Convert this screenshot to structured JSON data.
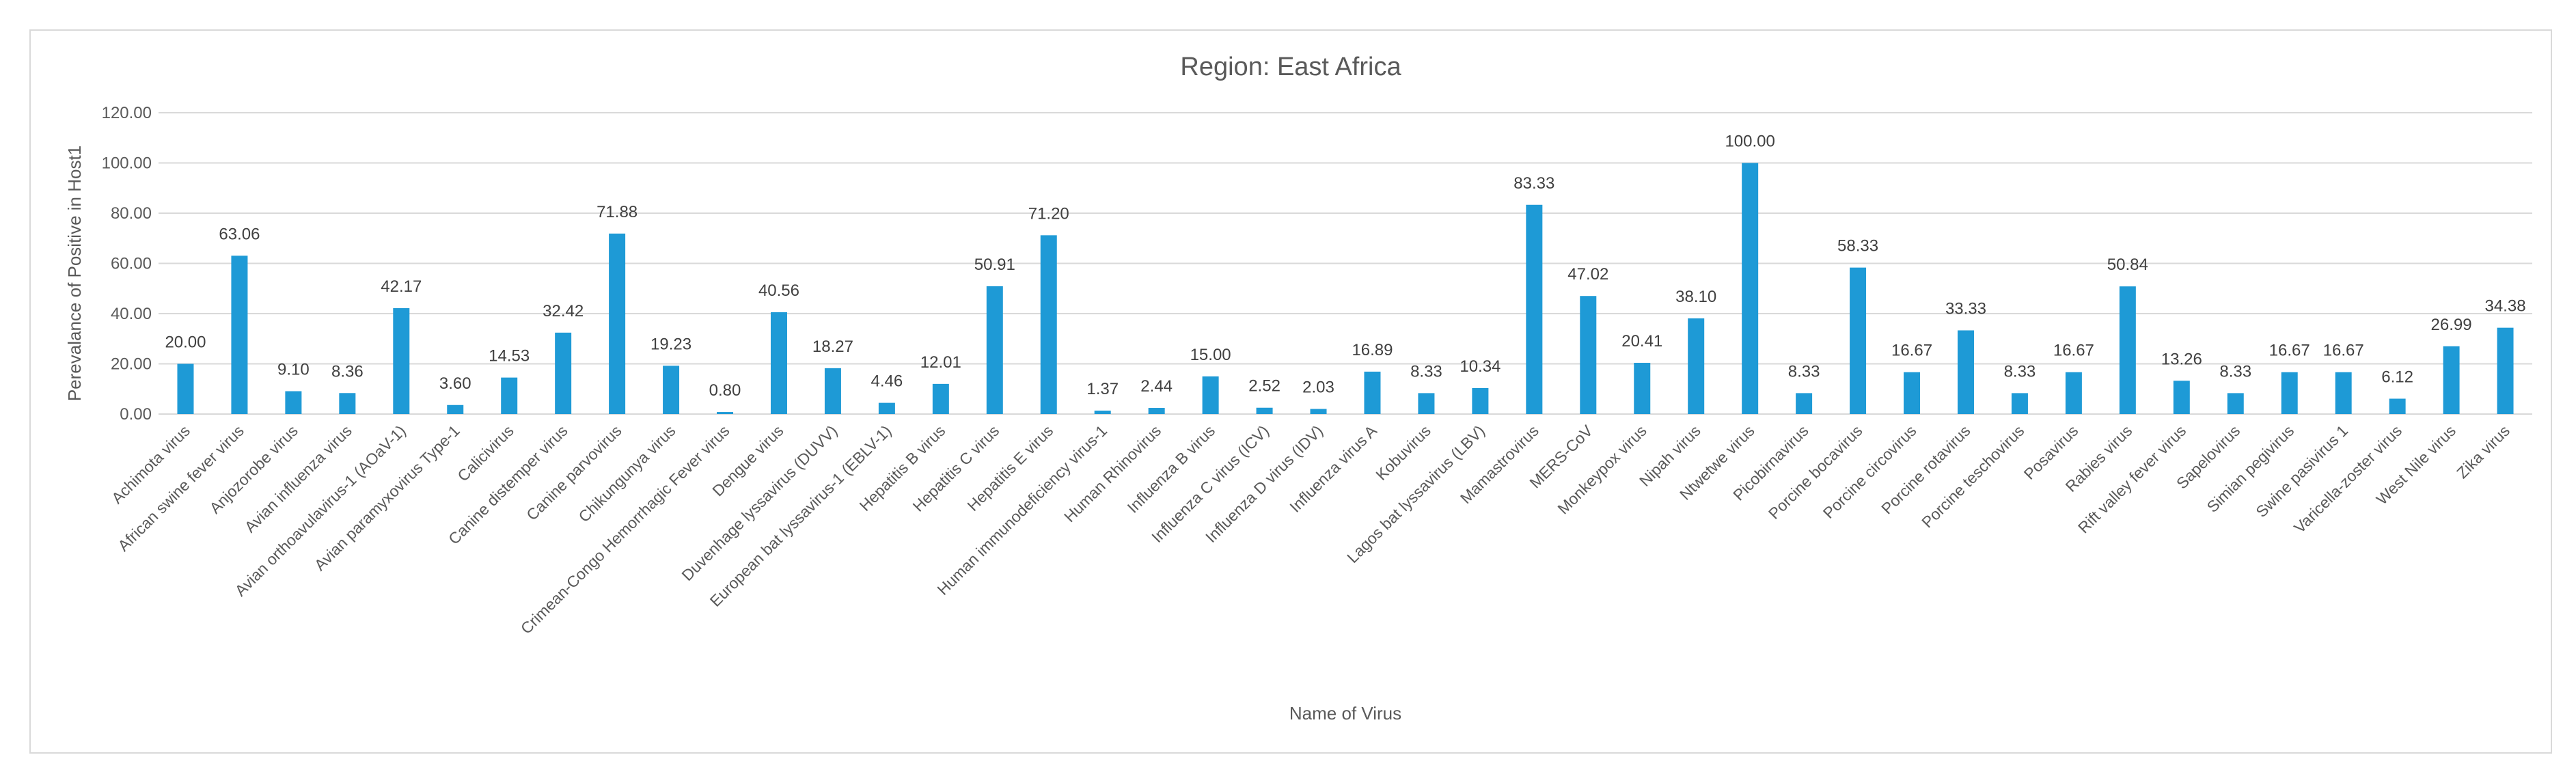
{
  "chart_data": {
    "type": "bar",
    "title": "Region: East Africa",
    "xlabel": "Name of Virus",
    "ylabel": "Perevalance of Positive in Host1",
    "ylim": [
      0,
      120
    ],
    "yticks": [
      "0.00",
      "20.00",
      "40.00",
      "60.00",
      "80.00",
      "100.00",
      "120.00"
    ],
    "grid": true,
    "bar_color": "#1e9ad6",
    "categories": [
      "Achimota virus",
      "African swine fever virus",
      "Anjozorobe virus",
      "Avian influenza virus",
      "Avian orthoavulavirus-1 (AOaV-1)",
      "Avian paramyxovirus Type-1",
      "Calicivirus",
      "Canine distemper virus",
      "Canine parvovirus",
      "Chikungunya virus",
      "Crimean-Congo Hemorrhagic Fever virus",
      "Dengue virus",
      "Duvenhage lyssavirus (DUVV)",
      "European bat lyssavirus-1 (EBLV-1)",
      "Hepatitis B virus",
      "Hepatitis C virus",
      "Hepatitis E virus",
      "Human immunodeficiency virus-1",
      "Human Rhinovirus",
      "Influenza B virus",
      "Influenza C virus (ICV)",
      "Influenza D virus (IDV)",
      "Influenza virus A",
      "Kobuvirus",
      "Lagos bat lyssavirus (LBV)",
      "Mamastrovirus",
      "MERS-CoV",
      "Monkeypox virus",
      "Nipah virus",
      "Ntwetwe virus",
      "Picobirnavirus",
      "Porcine bocavirus",
      "Porcine circovirus",
      "Porcine rotavirus",
      "Porcine teschovirus",
      "Posavirus",
      "Rabies virus",
      "Rift valley fever virus",
      "Sapelovirus",
      "Simian pegivirus",
      "Swine pasivirus 1",
      "Varicella-zoster virus",
      "West Nile virus",
      "Zika virus"
    ],
    "values": [
      20.0,
      63.06,
      9.1,
      8.36,
      42.17,
      3.6,
      14.53,
      32.42,
      71.88,
      19.23,
      0.8,
      40.56,
      18.27,
      4.46,
      12.01,
      50.91,
      71.2,
      1.37,
      2.44,
      15.0,
      2.52,
      2.03,
      16.89,
      8.33,
      10.34,
      83.33,
      47.02,
      20.41,
      38.1,
      100.0,
      8.33,
      58.33,
      16.67,
      33.33,
      8.33,
      16.67,
      50.84,
      13.26,
      8.33,
      16.67,
      16.67,
      6.12,
      26.99,
      34.38
    ],
    "labels": [
      "20.00",
      "63.06",
      "9.10",
      "8.36",
      "42.17",
      "3.60",
      "14.53",
      "32.42",
      "71.88",
      "19.23",
      "0.80",
      "40.56",
      "18.27",
      "4.46",
      "12.01",
      "50.91",
      "71.20",
      "1.37",
      "2.44",
      "15.00",
      "2.52",
      "2.03",
      "16.89",
      "8.33",
      "10.34",
      "83.33",
      "47.02",
      "20.41",
      "38.10",
      "100.00",
      "8.33",
      "58.33",
      "16.67",
      "33.33",
      "8.33",
      "16.67",
      "50.84",
      "13.26",
      "8.33",
      "16.67",
      "16.67",
      "6.12",
      "26.99",
      "34.38"
    ]
  }
}
